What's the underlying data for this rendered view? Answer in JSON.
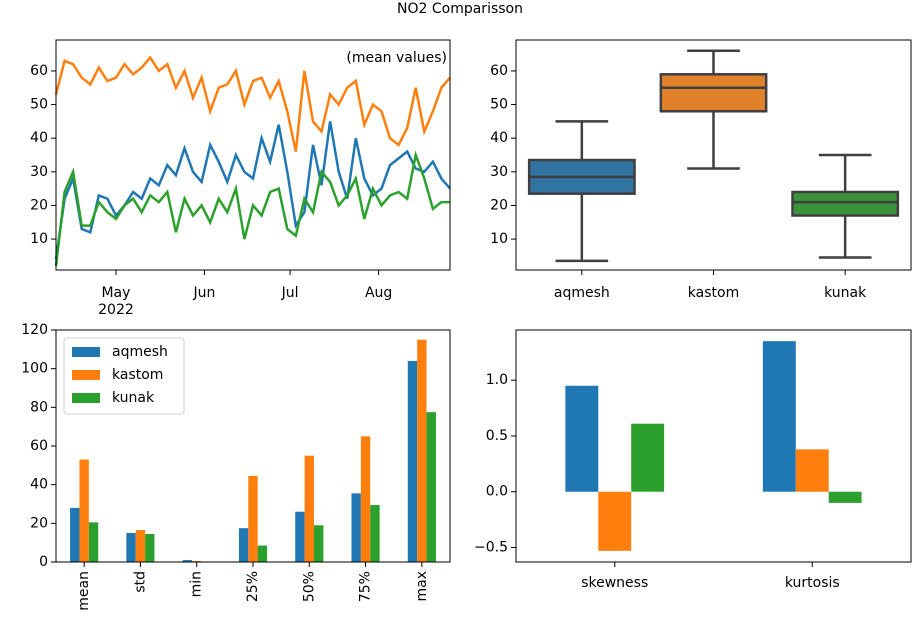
{
  "title": "NO2 Comparisson",
  "chart_data": [
    {
      "type": "line",
      "annotation": "(mean values)",
      "x": [
        100,
        103,
        106,
        109,
        112,
        115,
        118,
        121,
        124,
        127,
        130,
        133,
        136,
        139,
        142,
        145,
        148,
        151,
        154,
        157,
        160,
        163,
        166,
        169,
        172,
        175,
        178,
        181,
        184,
        187,
        190,
        193,
        196,
        199,
        202,
        205,
        208,
        211,
        214,
        217,
        220,
        223,
        226,
        229,
        232,
        235,
        238
      ],
      "xlim": [
        100,
        238
      ],
      "xticks": [
        {
          "value": 121,
          "label": "May\n2022"
        },
        {
          "value": 152,
          "label": "Jun"
        },
        {
          "value": 182,
          "label": "Jul"
        },
        {
          "value": 213,
          "label": "Aug"
        }
      ],
      "ylim": [
        0.8,
        69.2
      ],
      "yticks": [
        10,
        20,
        30,
        40,
        50,
        60
      ],
      "series": [
        {
          "name": "aqmesh",
          "color": "#1f77b4",
          "values": [
            4,
            22,
            28,
            13,
            12,
            23,
            22,
            17,
            20,
            24,
            22,
            28,
            26,
            32,
            29,
            37,
            30,
            27,
            38,
            33,
            27,
            35,
            30,
            28,
            40,
            33,
            44,
            30,
            14,
            18,
            38,
            26,
            45,
            30,
            22,
            40,
            28,
            23,
            25,
            32,
            34,
            36,
            31,
            30,
            33,
            28,
            25
          ]
        },
        {
          "name": "kastom",
          "color": "#ff7f0e",
          "values": [
            53,
            63,
            62,
            58,
            56,
            61,
            57,
            58,
            62,
            59,
            61,
            64,
            60,
            62,
            55,
            60,
            52,
            58,
            48,
            55,
            56,
            60,
            50,
            57,
            58,
            52,
            57,
            48,
            36,
            60,
            45,
            42,
            53,
            50,
            55,
            57,
            44,
            50,
            48,
            40,
            38,
            43,
            55,
            42,
            48,
            55,
            58
          ]
        },
        {
          "name": "kunak",
          "color": "#2ca02c",
          "values": [
            2,
            24,
            30,
            14,
            14,
            21,
            18,
            16,
            20,
            22,
            18,
            23,
            21,
            24,
            12,
            22,
            17,
            20,
            15,
            22,
            18,
            25,
            10,
            20,
            17,
            24,
            25,
            13,
            11,
            22,
            18,
            30,
            27,
            20,
            23,
            28,
            16,
            25,
            20,
            23,
            24,
            22,
            35,
            28,
            19,
            21,
            21
          ]
        }
      ]
    },
    {
      "type": "box",
      "categories": [
        "aqmesh",
        "kastom",
        "kunak"
      ],
      "colors": [
        "#3274a1",
        "#e1812c",
        "#3a923a"
      ],
      "whislo": [
        3.5,
        31,
        4.5
      ],
      "q1": [
        23.5,
        48,
        17
      ],
      "med": [
        28.5,
        55,
        21
      ],
      "q3": [
        33.5,
        59,
        24
      ],
      "whishi": [
        45,
        66,
        35
      ],
      "ylim": [
        0.8,
        69.2
      ],
      "yticks": [
        10,
        20,
        30,
        40,
        50,
        60
      ]
    },
    {
      "type": "bar",
      "categories": [
        "mean",
        "std",
        "min",
        "25%",
        "50%",
        "75%",
        "max"
      ],
      "series": [
        {
          "name": "aqmesh",
          "color": "#1f77b4",
          "values": [
            28,
            15,
            1,
            17.5,
            26,
            35.5,
            104
          ]
        },
        {
          "name": "kastom",
          "color": "#ff7f0e",
          "values": [
            53,
            16.5,
            0.5,
            44.5,
            55,
            65,
            115
          ]
        },
        {
          "name": "kunak",
          "color": "#2ca02c",
          "values": [
            20.5,
            14.5,
            0,
            8.5,
            19,
            29.5,
            77.5
          ]
        }
      ],
      "ylim": [
        0,
        120
      ],
      "yticks": [
        0,
        20,
        40,
        60,
        80,
        100,
        120
      ],
      "legend": "upper left",
      "rotate_labels": true
    },
    {
      "type": "bar",
      "categories": [
        "skewness",
        "kurtosis"
      ],
      "series": [
        {
          "color": "#1f77b4",
          "values": [
            0.95,
            1.35
          ]
        },
        {
          "color": "#ff7f0e",
          "values": [
            -0.53,
            0.38
          ]
        },
        {
          "color": "#2ca02c",
          "values": [
            0.61,
            -0.1
          ]
        }
      ],
      "ylim": [
        -0.63,
        1.45
      ],
      "yticks": [
        {
          "value": -0.5,
          "label": "−0.5"
        },
        {
          "value": 0,
          "label": "0.0"
        },
        {
          "value": 0.5,
          "label": "0.5"
        },
        {
          "value": 1,
          "label": "1.0"
        }
      ]
    }
  ]
}
